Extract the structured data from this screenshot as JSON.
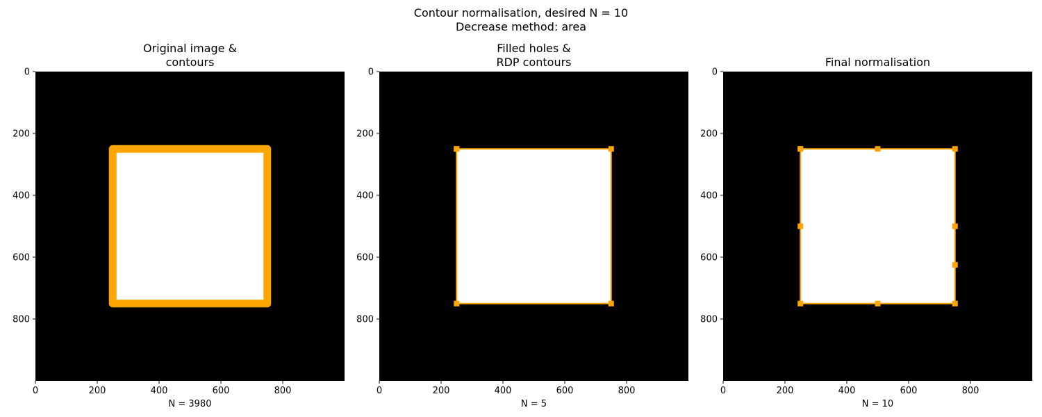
{
  "figure": {
    "suptitle_lines": [
      "Contour normalisation, desired N = 10",
      "Decrease method: area"
    ]
  },
  "colors": {
    "background": "#000000",
    "shape": "#ffffff",
    "contour": "#ffa500"
  },
  "chart_data": [
    {
      "type": "image",
      "title_lines": [
        "Original image &",
        "contours"
      ],
      "xlabel": "N = 3980",
      "ylabel": "",
      "xlim": [
        0,
        1000
      ],
      "ylim": [
        1000,
        0
      ],
      "xticks": [
        0,
        200,
        400,
        600,
        800
      ],
      "yticks": [
        0,
        200,
        400,
        600,
        800
      ],
      "grid": false,
      "square": [
        [
          250,
          250
        ],
        [
          750,
          750
        ]
      ],
      "contour_style": "thick",
      "contour_points": [
        [
          250,
          250
        ],
        [
          750,
          250
        ],
        [
          750,
          750
        ],
        [
          250,
          750
        ],
        [
          250,
          250
        ]
      ]
    },
    {
      "type": "image",
      "title_lines": [
        "Filled holes &",
        "RDP contours"
      ],
      "xlabel": "N = 5",
      "ylabel": "",
      "xlim": [
        0,
        1000
      ],
      "ylim": [
        1000,
        0
      ],
      "xticks": [
        0,
        200,
        400,
        600,
        800
      ],
      "yticks": [
        0,
        200,
        400,
        600,
        800
      ],
      "grid": false,
      "square": [
        [
          250,
          250
        ],
        [
          750,
          750
        ]
      ],
      "contour_style": "markers",
      "contour_points": [
        [
          250,
          250
        ],
        [
          750,
          250
        ],
        [
          750,
          750
        ],
        [
          250,
          750
        ],
        [
          250,
          250
        ]
      ]
    },
    {
      "type": "image",
      "title_lines": [
        "Final normalisation"
      ],
      "xlabel": "N = 10",
      "ylabel": "",
      "xlim": [
        0,
        1000
      ],
      "ylim": [
        1000,
        0
      ],
      "xticks": [
        0,
        200,
        400,
        600,
        800
      ],
      "yticks": [
        0,
        200,
        400,
        600,
        800
      ],
      "grid": false,
      "square": [
        [
          250,
          250
        ],
        [
          750,
          750
        ]
      ],
      "contour_style": "markers",
      "contour_points": [
        [
          250,
          250
        ],
        [
          500,
          250
        ],
        [
          750,
          250
        ],
        [
          750,
          500
        ],
        [
          750,
          625
        ],
        [
          750,
          750
        ],
        [
          500,
          750
        ],
        [
          250,
          750
        ],
        [
          250,
          500
        ],
        [
          250,
          250
        ]
      ]
    }
  ]
}
